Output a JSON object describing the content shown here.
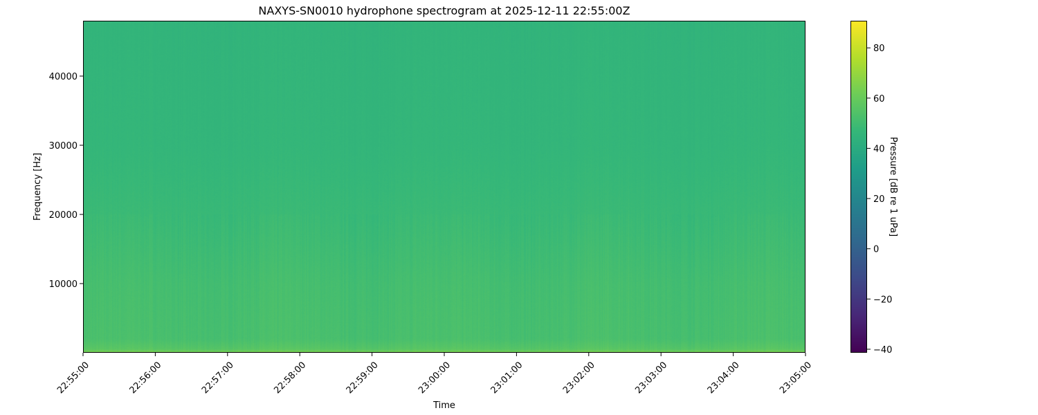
{
  "chart_data": {
    "type": "heatmap",
    "title": "NAXYS-SN0010 hydrophone spectrogram at 2025-12-11 22:55:00Z",
    "xlabel": "Time",
    "ylabel": "Frequency [Hz]",
    "x_ticks": [
      "22:55:00",
      "22:56:00",
      "22:57:00",
      "22:58:00",
      "22:59:00",
      "23:00:00",
      "23:01:00",
      "23:02:00",
      "23:03:00",
      "23:04:00",
      "23:05:00"
    ],
    "xlim": [
      "22:55:00",
      "23:05:00"
    ],
    "y_ticks": [
      10000,
      20000,
      30000,
      40000
    ],
    "ylim": [
      0,
      48000
    ],
    "colormap": "viridis",
    "colorbar": {
      "label": "Pressure [dB re 1 uPa]",
      "ticks": [
        -40,
        -20,
        0,
        20,
        40,
        60,
        80
      ],
      "range": [
        -41.4,
        90.8
      ]
    },
    "level_profile": {
      "frequency_hz": [
        0,
        500,
        2000,
        10000,
        20000,
        30000,
        48000
      ],
      "level_db": [
        65,
        56,
        52,
        51,
        48,
        46,
        45
      ]
    },
    "grid": false
  }
}
